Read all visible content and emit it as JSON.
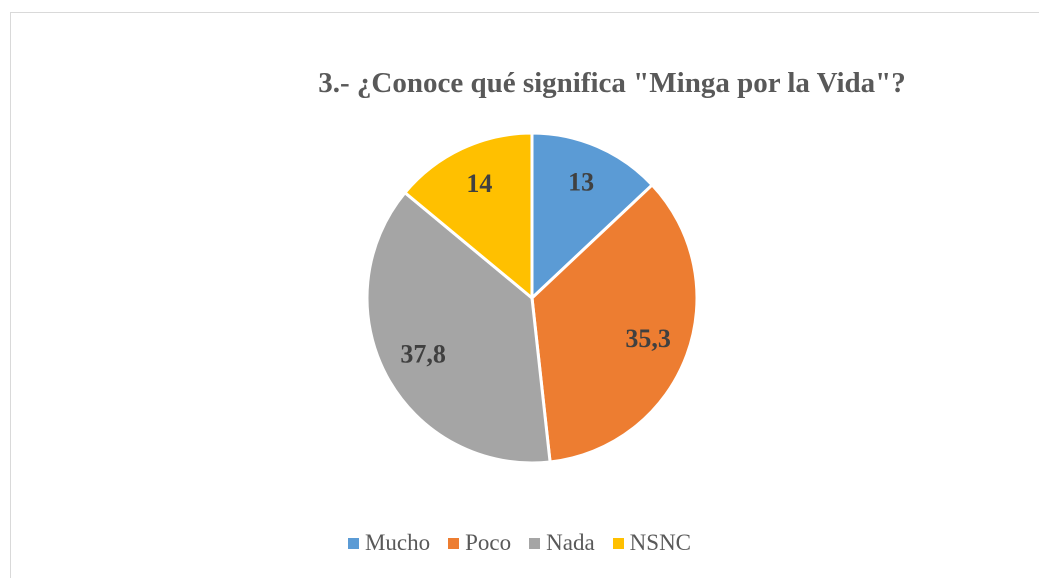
{
  "chart_data": {
    "type": "pie",
    "title": "3.- ¿Conoce qué significa \"Minga por la Vida\"?",
    "categories": [
      "Mucho",
      "Poco",
      "Nada",
      "NSNC"
    ],
    "values": [
      13,
      35.3,
      37.8,
      14
    ],
    "value_labels": [
      "13",
      "35,3",
      "37,8",
      "14"
    ],
    "colors": [
      "#5b9bd5",
      "#ed7d31",
      "#a5a5a5",
      "#ffc000"
    ],
    "legend": "bottom"
  }
}
